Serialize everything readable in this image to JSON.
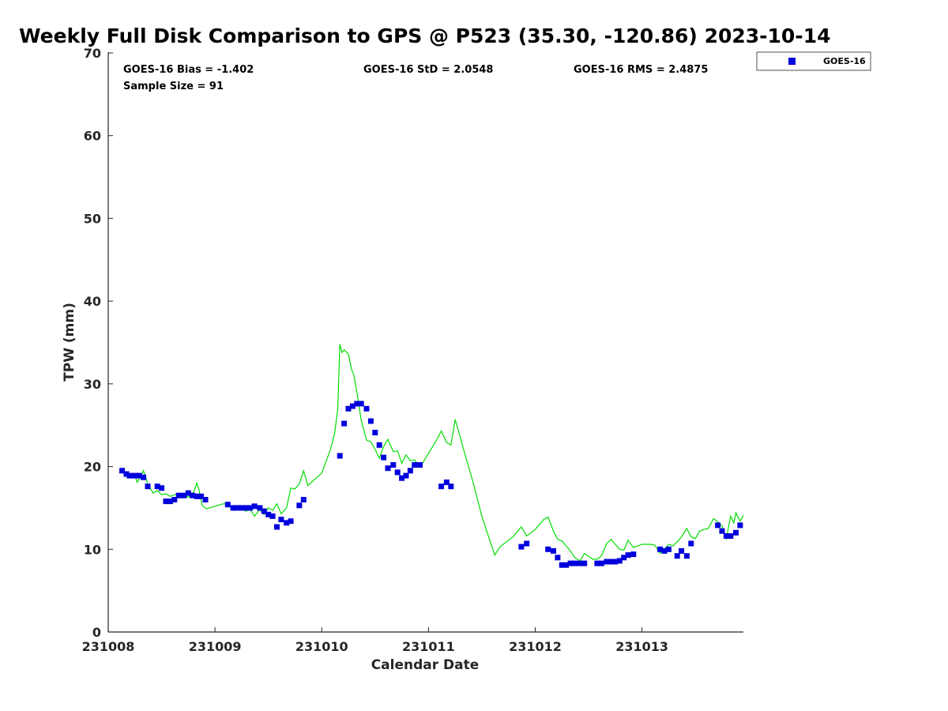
{
  "chart_data": {
    "type": "scatter",
    "title": "Weekly Full Disk Comparison to GPS @ P523 (35.30, -120.86) 2023-10-14",
    "xlabel": "Calendar Date",
    "ylabel": "TPW (mm)",
    "xlim": [
      231008,
      231013.95
    ],
    "ylim": [
      0,
      70
    ],
    "x_ticks": [
      231008,
      231009,
      231010,
      231011,
      231012,
      231013
    ],
    "x_tick_labels": [
      "231008",
      "231009",
      "231010",
      "231011",
      "231012",
      "231013"
    ],
    "y_ticks": [
      0,
      10,
      20,
      30,
      40,
      50,
      60,
      70
    ],
    "y_tick_labels": [
      "0",
      "10",
      "20",
      "30",
      "40",
      "50",
      "60",
      "70"
    ],
    "grid": false,
    "legend": {
      "placement": "top-right",
      "entries": [
        "GOES-16"
      ]
    },
    "stats": {
      "bias": "GOES-16 Bias = -1.402",
      "std": "GOES-16 StD = 2.0548",
      "rms": "GOES-16 RMS = 2.4875",
      "sample": "Sample Size = 91"
    },
    "series": [
      {
        "name": "GOES-16",
        "kind": "scatter",
        "color": "#0000dd",
        "x": [
          231008.13,
          231008.17,
          231008.2,
          231008.25,
          231008.29,
          231008.33,
          231008.37,
          231008.46,
          231008.5,
          231008.54,
          231008.58,
          231008.62,
          231008.66,
          231008.71,
          231008.75,
          231008.79,
          231008.83,
          231008.87,
          231008.91,
          231009.12,
          231009.17,
          231009.21,
          231009.25,
          231009.29,
          231009.33,
          231009.37,
          231009.42,
          231009.46,
          231009.5,
          231009.54,
          231009.58,
          231009.62,
          231009.67,
          231009.71,
          231009.79,
          231009.83,
          231010.17,
          231010.21,
          231010.25,
          231010.29,
          231010.33,
          231010.37,
          231010.42,
          231010.46,
          231010.5,
          231010.54,
          231010.58,
          231010.62,
          231010.67,
          231010.71,
          231010.75,
          231010.79,
          231010.83,
          231010.87,
          231010.92,
          231011.12,
          231011.17,
          231011.21,
          231011.87,
          231011.92,
          231012.12,
          231012.17,
          231012.21,
          231012.25,
          231012.29,
          231012.33,
          231012.37,
          231012.42,
          231012.46,
          231012.58,
          231012.62,
          231012.67,
          231012.71,
          231012.75,
          231012.79,
          231012.83,
          231012.87,
          231012.92,
          231013.17,
          231013.21,
          231013.25,
          231013.33,
          231013.37,
          231013.42,
          231013.46,
          231013.71,
          231013.75,
          231013.79,
          231013.83,
          231013.88,
          231013.92
        ],
        "y": [
          19.5,
          19.1,
          18.9,
          18.9,
          18.9,
          18.7,
          17.6,
          17.6,
          17.4,
          15.8,
          15.8,
          16.0,
          16.5,
          16.5,
          16.8,
          16.5,
          16.4,
          16.4,
          16.0,
          15.4,
          15.0,
          15.0,
          15.0,
          15.0,
          15.0,
          15.2,
          15.0,
          14.6,
          14.2,
          14.0,
          12.7,
          13.6,
          13.2,
          13.4,
          15.3,
          16.0,
          21.3,
          25.2,
          27.0,
          27.3,
          27.6,
          27.6,
          27.0,
          25.5,
          24.1,
          22.6,
          21.1,
          19.8,
          20.2,
          19.3,
          18.6,
          18.9,
          19.5,
          20.2,
          20.2,
          17.6,
          18.1,
          17.6,
          10.3,
          10.7,
          10.0,
          9.8,
          9.0,
          8.1,
          8.1,
          8.3,
          8.3,
          8.3,
          8.3,
          8.3,
          8.3,
          8.5,
          8.5,
          8.5,
          8.6,
          9.0,
          9.3,
          9.4,
          10.0,
          9.8,
          10.0,
          9.2,
          9.8,
          9.2,
          10.7,
          12.9,
          12.2,
          11.6,
          11.6,
          12.0,
          12.9
        ]
      },
      {
        "name": "",
        "kind": "line",
        "color": "#00dd00",
        "x": [
          231008.1,
          231008.15,
          231008.2,
          231008.25,
          231008.27,
          231008.29,
          231008.33,
          231008.35,
          231008.37,
          231008.42,
          231008.46,
          231008.5,
          231008.54,
          231008.58,
          231008.62,
          231008.67,
          231008.71,
          231008.75,
          231008.79,
          231008.83,
          231008.85,
          231008.88,
          231008.92,
          231009.0,
          231009.08,
          231009.12,
          231009.17,
          231009.21,
          231009.25,
          231009.29,
          231009.33,
          231009.37,
          231009.42,
          231009.46,
          231009.5,
          231009.54,
          231009.58,
          231009.62,
          231009.67,
          231009.71,
          231009.75,
          231009.79,
          231009.83,
          231009.87,
          231009.92,
          231010.0,
          231010.08,
          231010.12,
          231010.15,
          231010.17,
          231010.19,
          231010.21,
          231010.25,
          231010.28,
          231010.3,
          231010.33,
          231010.37,
          231010.42,
          231010.46,
          231010.5,
          231010.54,
          231010.58,
          231010.62,
          231010.67,
          231010.71,
          231010.75,
          231010.79,
          231010.83,
          231010.87,
          231010.92,
          231011.0,
          231011.08,
          231011.12,
          231011.17,
          231011.21,
          231011.25,
          231011.33,
          231011.42,
          231011.5,
          231011.62,
          231011.67,
          231011.79,
          231011.87,
          231011.92,
          231012.0,
          231012.08,
          231012.12,
          231012.17,
          231012.21,
          231012.25,
          231012.29,
          231012.33,
          231012.37,
          231012.42,
          231012.46,
          231012.54,
          231012.58,
          231012.62,
          231012.67,
          231012.71,
          231012.75,
          231012.79,
          231012.83,
          231012.87,
          231012.92,
          231013.0,
          231013.08,
          231013.12,
          231013.17,
          231013.21,
          231013.25,
          231013.29,
          231013.33,
          231013.37,
          231013.42,
          231013.46,
          231013.5,
          231013.54,
          231013.58,
          231013.62,
          231013.67,
          231013.71,
          231013.75,
          231013.79,
          231013.83,
          231013.86,
          231013.88,
          231013.92,
          231013.95
        ],
        "y": [
          19.3,
          19.4,
          19.1,
          18.9,
          18.1,
          18.5,
          19.5,
          18.7,
          17.9,
          16.8,
          17.1,
          16.6,
          16.7,
          16.4,
          16.6,
          16.8,
          16.6,
          16.3,
          16.6,
          18.0,
          17.2,
          15.3,
          14.9,
          15.2,
          15.5,
          15.5,
          14.7,
          14.8,
          14.9,
          14.6,
          14.8,
          14.0,
          14.8,
          14.2,
          15.0,
          14.7,
          15.5,
          14.3,
          15.0,
          17.4,
          17.3,
          17.9,
          19.5,
          17.7,
          18.3,
          19.2,
          22.0,
          24.0,
          26.9,
          34.8,
          33.8,
          34.1,
          33.6,
          31.7,
          31.1,
          29.0,
          25.6,
          23.2,
          23.0,
          22.1,
          21.0,
          22.4,
          23.3,
          21.8,
          21.9,
          20.4,
          21.4,
          20.7,
          20.8,
          19.9,
          21.6,
          23.3,
          24.3,
          22.9,
          22.6,
          25.7,
          22.0,
          18.0,
          14.0,
          9.3,
          10.3,
          11.5,
          12.7,
          11.6,
          12.4,
          13.6,
          13.9,
          12.2,
          11.2,
          11.0,
          10.4,
          9.8,
          9.0,
          8.6,
          9.5,
          8.8,
          8.8,
          9.2,
          10.7,
          11.2,
          10.6,
          10.0,
          9.9,
          11.1,
          10.2,
          10.6,
          10.6,
          10.5,
          9.5,
          10.0,
          10.6,
          10.4,
          10.9,
          11.5,
          12.5,
          11.5,
          11.3,
          12.2,
          12.4,
          12.5,
          13.7,
          13.3,
          12.8,
          11.3,
          14.0,
          13.2,
          14.4,
          13.4,
          14.1
        ]
      }
    ]
  }
}
